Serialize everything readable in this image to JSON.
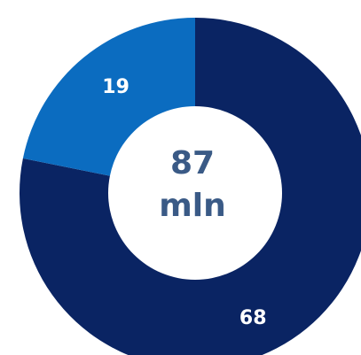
{
  "chart_data": {
    "type": "pie",
    "variant": "donut",
    "categories": [
      "",
      ""
    ],
    "values": [
      68,
      19
    ],
    "data_labels": [
      "68",
      "19"
    ],
    "colors": [
      "#0a2463",
      "#0b6cc0"
    ],
    "center": {
      "line1": "87",
      "line2": "mln",
      "color": "#3a5a86"
    },
    "title": "",
    "legend": "none"
  }
}
